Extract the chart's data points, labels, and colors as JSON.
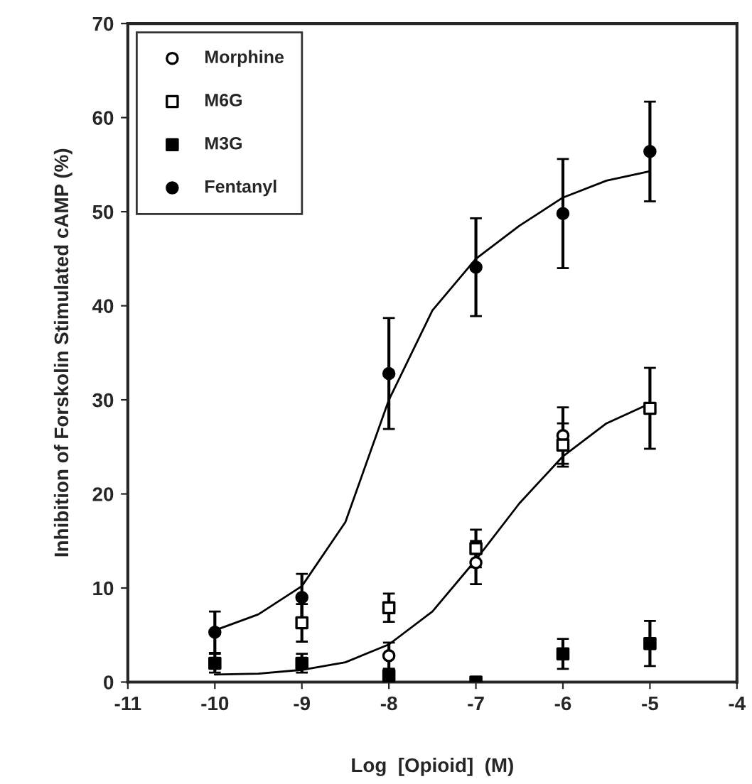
{
  "chart_data": {
    "type": "scatter",
    "xlabel": "Log  [Opioid]  (M)",
    "ylabel": "Inhibition of Forskolin Stimulated cAMP (%)",
    "x": [
      -10,
      -9,
      -8,
      -7,
      -6,
      -5
    ],
    "series": [
      {
        "name": "Morphine",
        "marker": "circle",
        "color": "#ffffff",
        "values": [
          null,
          null,
          2.8,
          12.7,
          26.2,
          null
        ],
        "errors": [
          null,
          null,
          1.4,
          2.3,
          3,
          null
        ]
      },
      {
        "name": "M6G",
        "marker": "square",
        "color": "#ffffff",
        "values": [
          null,
          6.3,
          7.9,
          14.2,
          25.2,
          29.1
        ],
        "errors": [
          null,
          2,
          1.5,
          2,
          2.3,
          4.3
        ]
      },
      {
        "name": "M3G",
        "marker": "square",
        "color": "#000000",
        "values": [
          2,
          2,
          0.7,
          0,
          3,
          4.1
        ],
        "errors": [
          1,
          1,
          0.7,
          null,
          1.6,
          2.4
        ]
      },
      {
        "name": "Fentanyl",
        "marker": "circle",
        "color": "#000000",
        "values": [
          5.3,
          9,
          32.8,
          44.1,
          49.8,
          56.4
        ],
        "errors": [
          2.2,
          2.5,
          5.9,
          5.2,
          5.8,
          5.3
        ]
      },
      {
        "type": "line",
        "marker": "none",
        "color": "#000000",
        "x": [
          -10,
          -9.5,
          -9,
          -8.5,
          -8,
          -7.5,
          -7,
          -6.5,
          -6,
          -5.5,
          -5
        ],
        "values": [
          5.5,
          7.2,
          10.2,
          17,
          30,
          39.5,
          45,
          48.5,
          51.5,
          53.3,
          54.3
        ]
      },
      {
        "type": "line",
        "marker": "none",
        "color": "#000000",
        "x": [
          -10,
          -9.5,
          -9,
          -8.5,
          -8,
          -7.5,
          -7,
          -6.5,
          -6,
          -5.5,
          -5
        ],
        "values": [
          0.8,
          0.9,
          1.3,
          2.1,
          4,
          7.5,
          13,
          19,
          24,
          27.5,
          29.6
        ]
      }
    ],
    "xlim": [
      -11,
      -4
    ],
    "xticks": [
      -11,
      -10,
      -9,
      -8,
      -7,
      -6,
      -5,
      -4
    ],
    "ylim": [
      0,
      70
    ],
    "yticks": [
      0,
      10,
      20,
      30,
      40,
      50,
      60,
      70
    ],
    "legend": "top left"
  }
}
